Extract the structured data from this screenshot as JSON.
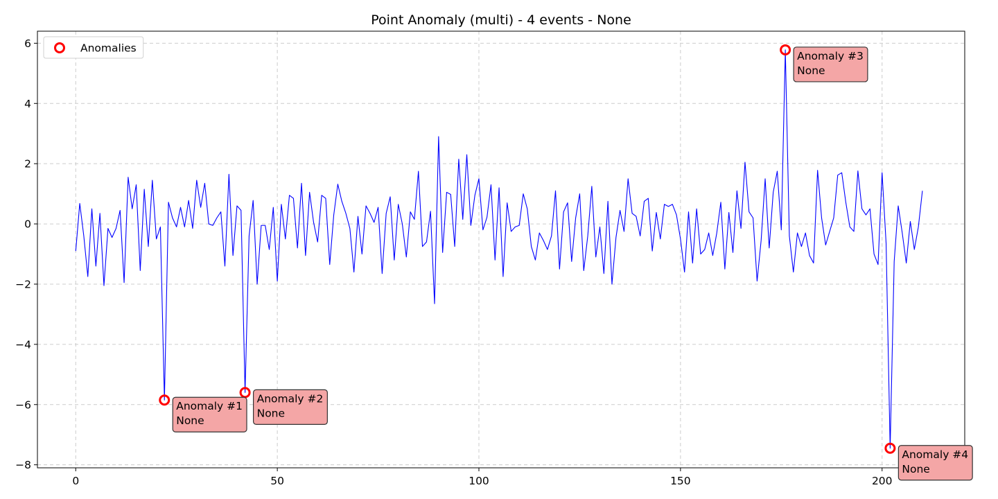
{
  "chart_data": {
    "type": "line",
    "title": "Point Anomaly (multi) - 4 events - None",
    "xlabel": "",
    "ylabel": "",
    "xlim": [
      -9.5,
      220.5
    ],
    "ylim": [
      -8.1,
      6.4
    ],
    "xticks": [
      0,
      50,
      100,
      150,
      200
    ],
    "yticks": [
      -8,
      -6,
      -4,
      -2,
      0,
      2,
      4,
      6
    ],
    "grid": true,
    "legend": {
      "position": "top-left",
      "entries": [
        "Anomalies"
      ]
    },
    "colors": {
      "line": "#0000ff",
      "anomaly": "#ff0000",
      "annotation_bg": "#f4a6a6",
      "grid": "#cccccc"
    },
    "series": [
      {
        "x_start": 0,
        "values": [
          -0.9,
          0.68,
          -0.4,
          -1.75,
          0.5,
          -1.4,
          0.35,
          -2.05,
          -0.15,
          -0.45,
          -0.15,
          0.45,
          -1.95,
          1.55,
          0.5,
          1.3,
          -1.55,
          1.15,
          -0.75,
          1.45,
          -0.5,
          -0.1,
          -5.85,
          0.72,
          0.2,
          -0.1,
          0.55,
          -0.1,
          0.78,
          -0.15,
          1.45,
          0.55,
          1.35,
          0.0,
          -0.05,
          0.2,
          0.4,
          -1.4,
          1.65,
          -1.05,
          0.6,
          0.45,
          -5.6,
          -0.4,
          0.78,
          -2.0,
          -0.05,
          -0.05,
          -0.85,
          0.55,
          -1.9,
          0.65,
          -0.5,
          0.95,
          0.85,
          -0.8,
          1.35,
          -1.05,
          1.05,
          0.05,
          -0.6,
          0.95,
          0.85,
          -1.35,
          0.3,
          1.32,
          0.75,
          0.35,
          -0.15,
          -1.6,
          0.25,
          -1.0,
          0.6,
          0.35,
          0.05,
          0.55,
          -1.65,
          0.35,
          0.9,
          -1.2,
          0.65,
          0.0,
          -1.1,
          0.4,
          0.15,
          1.75,
          -0.75,
          -0.6,
          0.42,
          -2.65,
          2.9,
          -0.95,
          1.05,
          0.98,
          -0.75,
          2.15,
          0.15,
          2.3,
          -0.05,
          0.95,
          1.5,
          -0.2,
          0.22,
          1.3,
          -1.2,
          1.2,
          -1.75,
          0.7,
          -0.25,
          -0.1,
          -0.05,
          1.0,
          0.5,
          -0.75,
          -1.2,
          -0.3,
          -0.55,
          -0.85,
          -0.4,
          1.1,
          -1.5,
          0.4,
          0.7,
          -1.25,
          0.2,
          1.0,
          -1.55,
          -0.4,
          1.25,
          -1.1,
          -0.1,
          -1.65,
          0.75,
          -2.0,
          -0.45,
          0.45,
          -0.25,
          1.5,
          0.35,
          0.25,
          -0.4,
          0.75,
          0.85,
          -0.9,
          0.38,
          -0.5,
          0.65,
          0.58,
          0.65,
          0.3,
          -0.5,
          -1.6,
          0.4,
          -1.3,
          0.5,
          -1.0,
          -0.85,
          -0.3,
          -1.05,
          -0.3,
          0.72,
          -1.5,
          0.38,
          -0.95,
          1.1,
          -0.15,
          2.05,
          0.4,
          0.2,
          -1.9,
          -0.55,
          1.5,
          -0.8,
          1.05,
          1.75,
          -0.2,
          5.78,
          -0.4,
          -1.6,
          -0.3,
          -0.75,
          -0.3,
          -1.05,
          -1.3,
          1.78,
          0.2,
          -0.7,
          -0.25,
          0.2,
          1.62,
          1.7,
          0.72,
          -0.1,
          -0.25,
          1.76,
          0.5,
          0.3,
          0.5,
          -1.0,
          -1.35,
          1.7,
          -0.65,
          -7.45,
          -1.25,
          0.6,
          -0.3,
          -1.3,
          0.08,
          -0.85,
          -0.1,
          1.1
        ]
      }
    ],
    "anomalies": [
      {
        "x": 22,
        "y": -5.85,
        "label": "Anomaly #1",
        "detail": "None"
      },
      {
        "x": 42,
        "y": -5.6,
        "label": "Anomaly #2",
        "detail": "None"
      },
      {
        "x": 176,
        "y": 5.78,
        "label": "Anomaly #3",
        "detail": "None"
      },
      {
        "x": 202,
        "y": -7.45,
        "label": "Anomaly #4",
        "detail": "None"
      }
    ]
  }
}
